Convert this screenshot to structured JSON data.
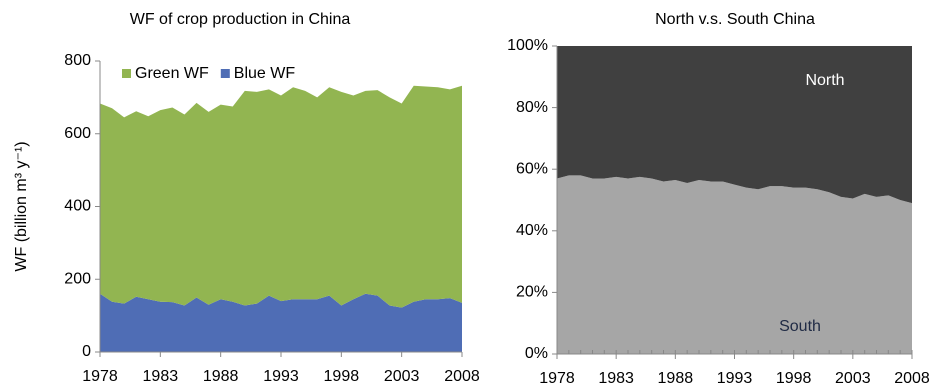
{
  "chart_data": [
    {
      "type": "area",
      "stacked": true,
      "title": "WF of crop production in China",
      "y_label": "WF (billion m³ y⁻¹)",
      "x": [
        1978,
        1979,
        1980,
        1981,
        1982,
        1983,
        1984,
        1985,
        1986,
        1987,
        1988,
        1989,
        1990,
        1991,
        1992,
        1993,
        1994,
        1995,
        1996,
        1997,
        1998,
        1999,
        2000,
        2001,
        2002,
        2003,
        2004,
        2005,
        2006,
        2007,
        2008
      ],
      "series": [
        {
          "name": "Blue WF",
          "color": "#4f6db5",
          "values": [
            160,
            138,
            133,
            152,
            145,
            138,
            137,
            128,
            150,
            130,
            145,
            138,
            128,
            133,
            155,
            140,
            145,
            145,
            145,
            155,
            128,
            145,
            160,
            155,
            128,
            122,
            138,
            145,
            145,
            148,
            135
          ]
        },
        {
          "name": "Green WF",
          "color": "#92b551",
          "values": [
            523,
            532,
            512,
            510,
            503,
            527,
            535,
            525,
            535,
            530,
            535,
            537,
            590,
            582,
            567,
            565,
            583,
            573,
            555,
            573,
            587,
            560,
            558,
            565,
            572,
            561,
            594,
            585,
            583,
            574,
            597
          ]
        }
      ],
      "legend": "top-left",
      "xlim": [
        1978,
        2008
      ],
      "xticks": [
        1978,
        1983,
        1988,
        1993,
        1998,
        2003,
        2008
      ],
      "ylim": [
        0,
        800
      ],
      "yticks": [
        0,
        200,
        400,
        600,
        800
      ]
    },
    {
      "type": "area",
      "stacked": true,
      "title": "North v.s. South China",
      "x": [
        1978,
        1979,
        1980,
        1981,
        1982,
        1983,
        1984,
        1985,
        1986,
        1987,
        1988,
        1989,
        1990,
        1991,
        1992,
        1993,
        1994,
        1995,
        1996,
        1997,
        1998,
        1999,
        2000,
        2001,
        2002,
        2003,
        2004,
        2005,
        2006,
        2007,
        2008
      ],
      "series": [
        {
          "name": "South",
          "color": "#a6a6a6",
          "values": [
            57,
            58,
            58,
            57,
            57,
            57.5,
            57,
            57.5,
            57,
            56,
            56.5,
            55.5,
            56.5,
            56,
            56,
            55,
            54,
            53.5,
            54.5,
            54.5,
            54,
            54,
            53.5,
            52.5,
            51,
            50.5,
            52,
            51,
            51.5,
            50,
            49
          ]
        },
        {
          "name": "North",
          "color": "#404040",
          "values": [
            43,
            42,
            42,
            43,
            43,
            42.5,
            43,
            42.5,
            43,
            44,
            43.5,
            44.5,
            43.5,
            44,
            44,
            45,
            46,
            46.5,
            45.5,
            45.5,
            46,
            46,
            46.5,
            47.5,
            49,
            49.5,
            48,
            49,
            48.5,
            50,
            51
          ]
        }
      ],
      "annotations": [
        "North",
        "South"
      ],
      "xlim": [
        1978,
        2008
      ],
      "xticks": [
        1978,
        1983,
        1988,
        1993,
        1998,
        2003,
        2008
      ],
      "ylim": [
        0,
        100
      ],
      "yticks": [
        {
          "value": 0,
          "label": "0%"
        },
        {
          "value": 20,
          "label": "20%"
        },
        {
          "value": 40,
          "label": "40%"
        },
        {
          "value": 60,
          "label": "60%"
        },
        {
          "value": 80,
          "label": "80%"
        },
        {
          "value": 100,
          "label": "100%"
        }
      ]
    }
  ]
}
